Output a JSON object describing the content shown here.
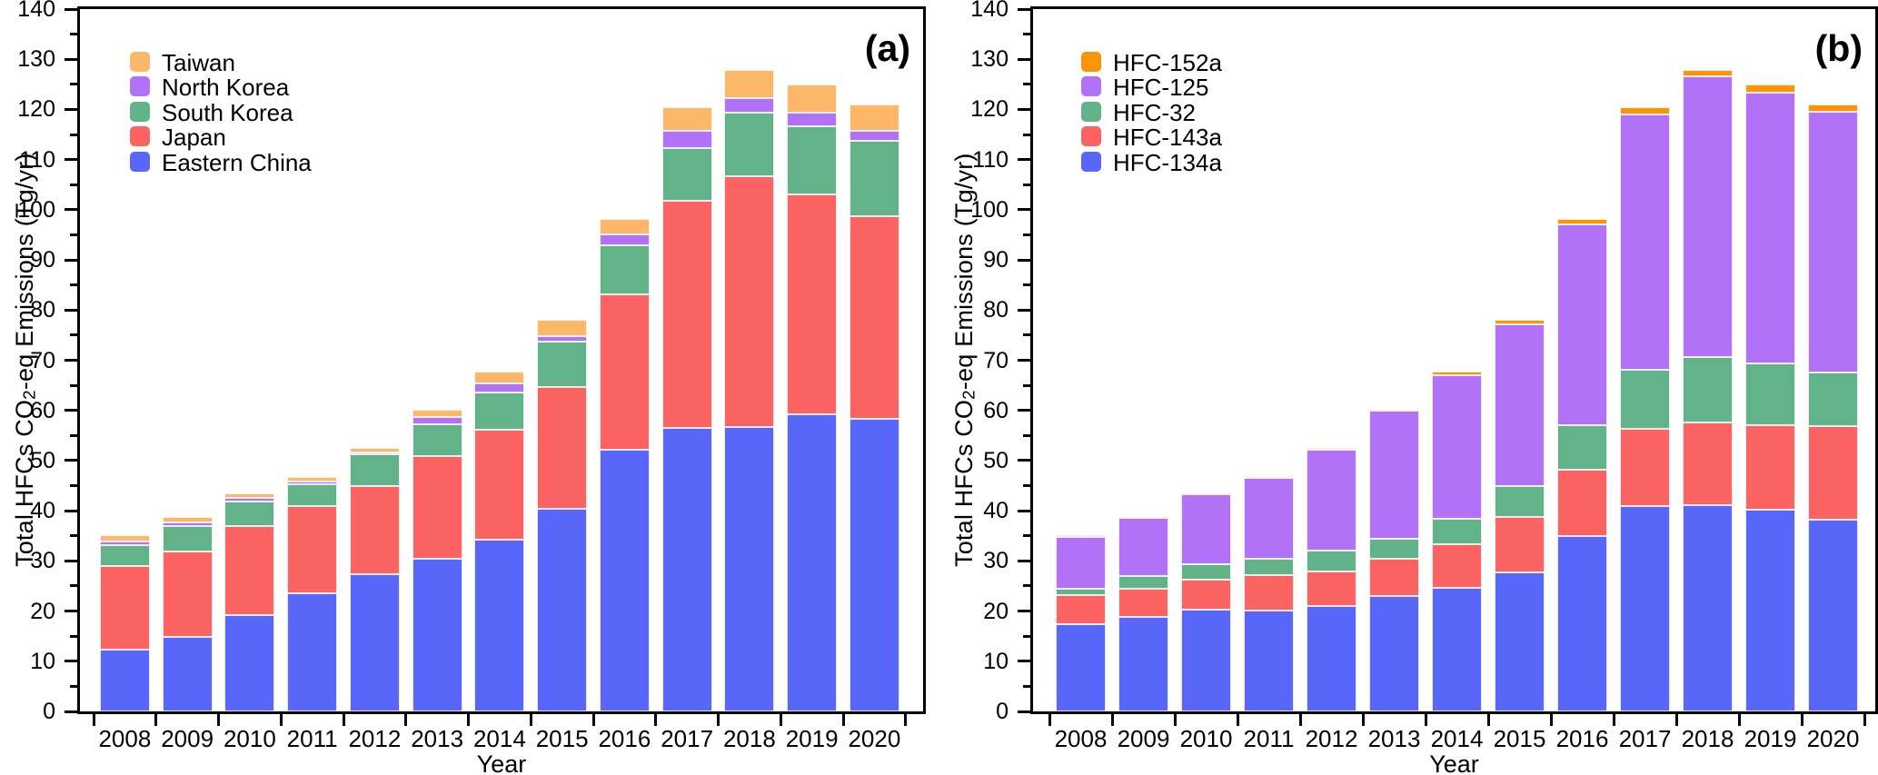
{
  "figure": {
    "background": "#ffffff",
    "axis_color": "#000000"
  },
  "chart_data": [
    {
      "panel_label": "(a)",
      "type": "bar",
      "stacked": true,
      "title": "",
      "xlabel": "Year",
      "ylabel": "Total HFCs CO2-eq Emissions (Tg/yr)",
      "ylim": [
        0,
        140
      ],
      "ytick_major_step": 10,
      "ytick_minor_step": 5,
      "grid": false,
      "legend_position": "top-left-inside",
      "categories": [
        "2008",
        "2009",
        "2010",
        "2011",
        "2012",
        "2013",
        "2014",
        "2015",
        "2016",
        "2017",
        "2018",
        "2019",
        "2020"
      ],
      "series": [
        {
          "name": "Eastern China",
          "color": "#5966FA",
          "values": [
            12.3,
            14.8,
            19.2,
            23.6,
            27.4,
            30.5,
            34.3,
            40.4,
            52.1,
            56.5,
            56.6,
            59.2,
            58.3
          ]
        },
        {
          "name": "Japan",
          "color": "#FC6464",
          "values": [
            16.6,
            17.0,
            17.8,
            17.3,
            17.5,
            20.4,
            21.9,
            24.2,
            31.0,
            45.3,
            50.0,
            43.8,
            40.4
          ]
        },
        {
          "name": "South Korea",
          "color": "#62B28A",
          "values": [
            4.2,
            5.2,
            4.9,
            4.3,
            6.3,
            6.3,
            7.4,
            9.1,
            9.8,
            10.5,
            12.8,
            13.7,
            15.0
          ]
        },
        {
          "name": "North Korea",
          "color": "#B272F7",
          "values": [
            0.7,
            0.7,
            0.6,
            0.7,
            0.5,
            1.5,
            1.8,
            1.1,
            2.1,
            3.5,
            2.8,
            2.6,
            2.1
          ]
        },
        {
          "name": "Taiwan",
          "color": "#FDB768",
          "values": [
            1.4,
            1.1,
            1.0,
            0.9,
            0.8,
            1.5,
            2.3,
            3.2,
            3.1,
            4.6,
            5.7,
            5.6,
            5.2
          ]
        }
      ],
      "totals": [
        35.2,
        38.8,
        43.5,
        46.8,
        52.5,
        60.2,
        67.7,
        78.0,
        98.1,
        120.4,
        127.9,
        124.9,
        121.0
      ],
      "legend_order_top_to_bottom": [
        "Taiwan",
        "North Korea",
        "South Korea",
        "Japan",
        "Eastern China"
      ]
    },
    {
      "panel_label": "(b)",
      "type": "bar",
      "stacked": true,
      "title": "",
      "xlabel": "Year",
      "ylabel": "Total HFCs CO2-eq Emissions (Tg/yr)",
      "ylim": [
        0,
        140
      ],
      "ytick_major_step": 10,
      "ytick_minor_step": 5,
      "grid": false,
      "legend_position": "top-left-inside",
      "categories": [
        "2008",
        "2009",
        "2010",
        "2011",
        "2012",
        "2013",
        "2014",
        "2015",
        "2016",
        "2017",
        "2018",
        "2019",
        "2020"
      ],
      "series": [
        {
          "name": "HFC-134a",
          "color": "#5966FA",
          "values": [
            17.4,
            18.8,
            20.2,
            20.1,
            21.0,
            23.0,
            24.6,
            27.7,
            35.0,
            40.9,
            41.1,
            40.2,
            38.2
          ]
        },
        {
          "name": "HFC-143a",
          "color": "#FC6464",
          "values": [
            5.7,
            5.7,
            6.0,
            7.0,
            6.9,
            7.4,
            8.8,
            11.0,
            13.2,
            15.4,
            16.5,
            16.9,
            18.6
          ]
        },
        {
          "name": "HFC-32",
          "color": "#62B28A",
          "values": [
            1.4,
            2.4,
            3.1,
            3.3,
            4.1,
            4.0,
            5.0,
            6.3,
            8.8,
            11.8,
            13.1,
            12.2,
            10.8
          ]
        },
        {
          "name": "HFC-125",
          "color": "#B272F7",
          "values": [
            10.3,
            11.6,
            13.9,
            16.1,
            20.2,
            25.5,
            28.7,
            32.1,
            40.1,
            50.9,
            55.9,
            54.1,
            52.0
          ]
        },
        {
          "name": "HFC-152a",
          "color": "#FA9408",
          "values": [
            0.4,
            0.3,
            0.3,
            0.3,
            0.3,
            0.3,
            0.6,
            0.9,
            1.0,
            1.4,
            1.3,
            1.5,
            1.4
          ]
        }
      ],
      "totals": [
        35.2,
        38.8,
        43.5,
        46.8,
        52.5,
        60.2,
        67.7,
        78.0,
        98.1,
        120.4,
        127.9,
        124.9,
        121.0
      ],
      "legend_order_top_to_bottom": [
        "HFC-152a",
        "HFC-125",
        "HFC-32",
        "HFC-143a",
        "HFC-134a"
      ]
    }
  ]
}
